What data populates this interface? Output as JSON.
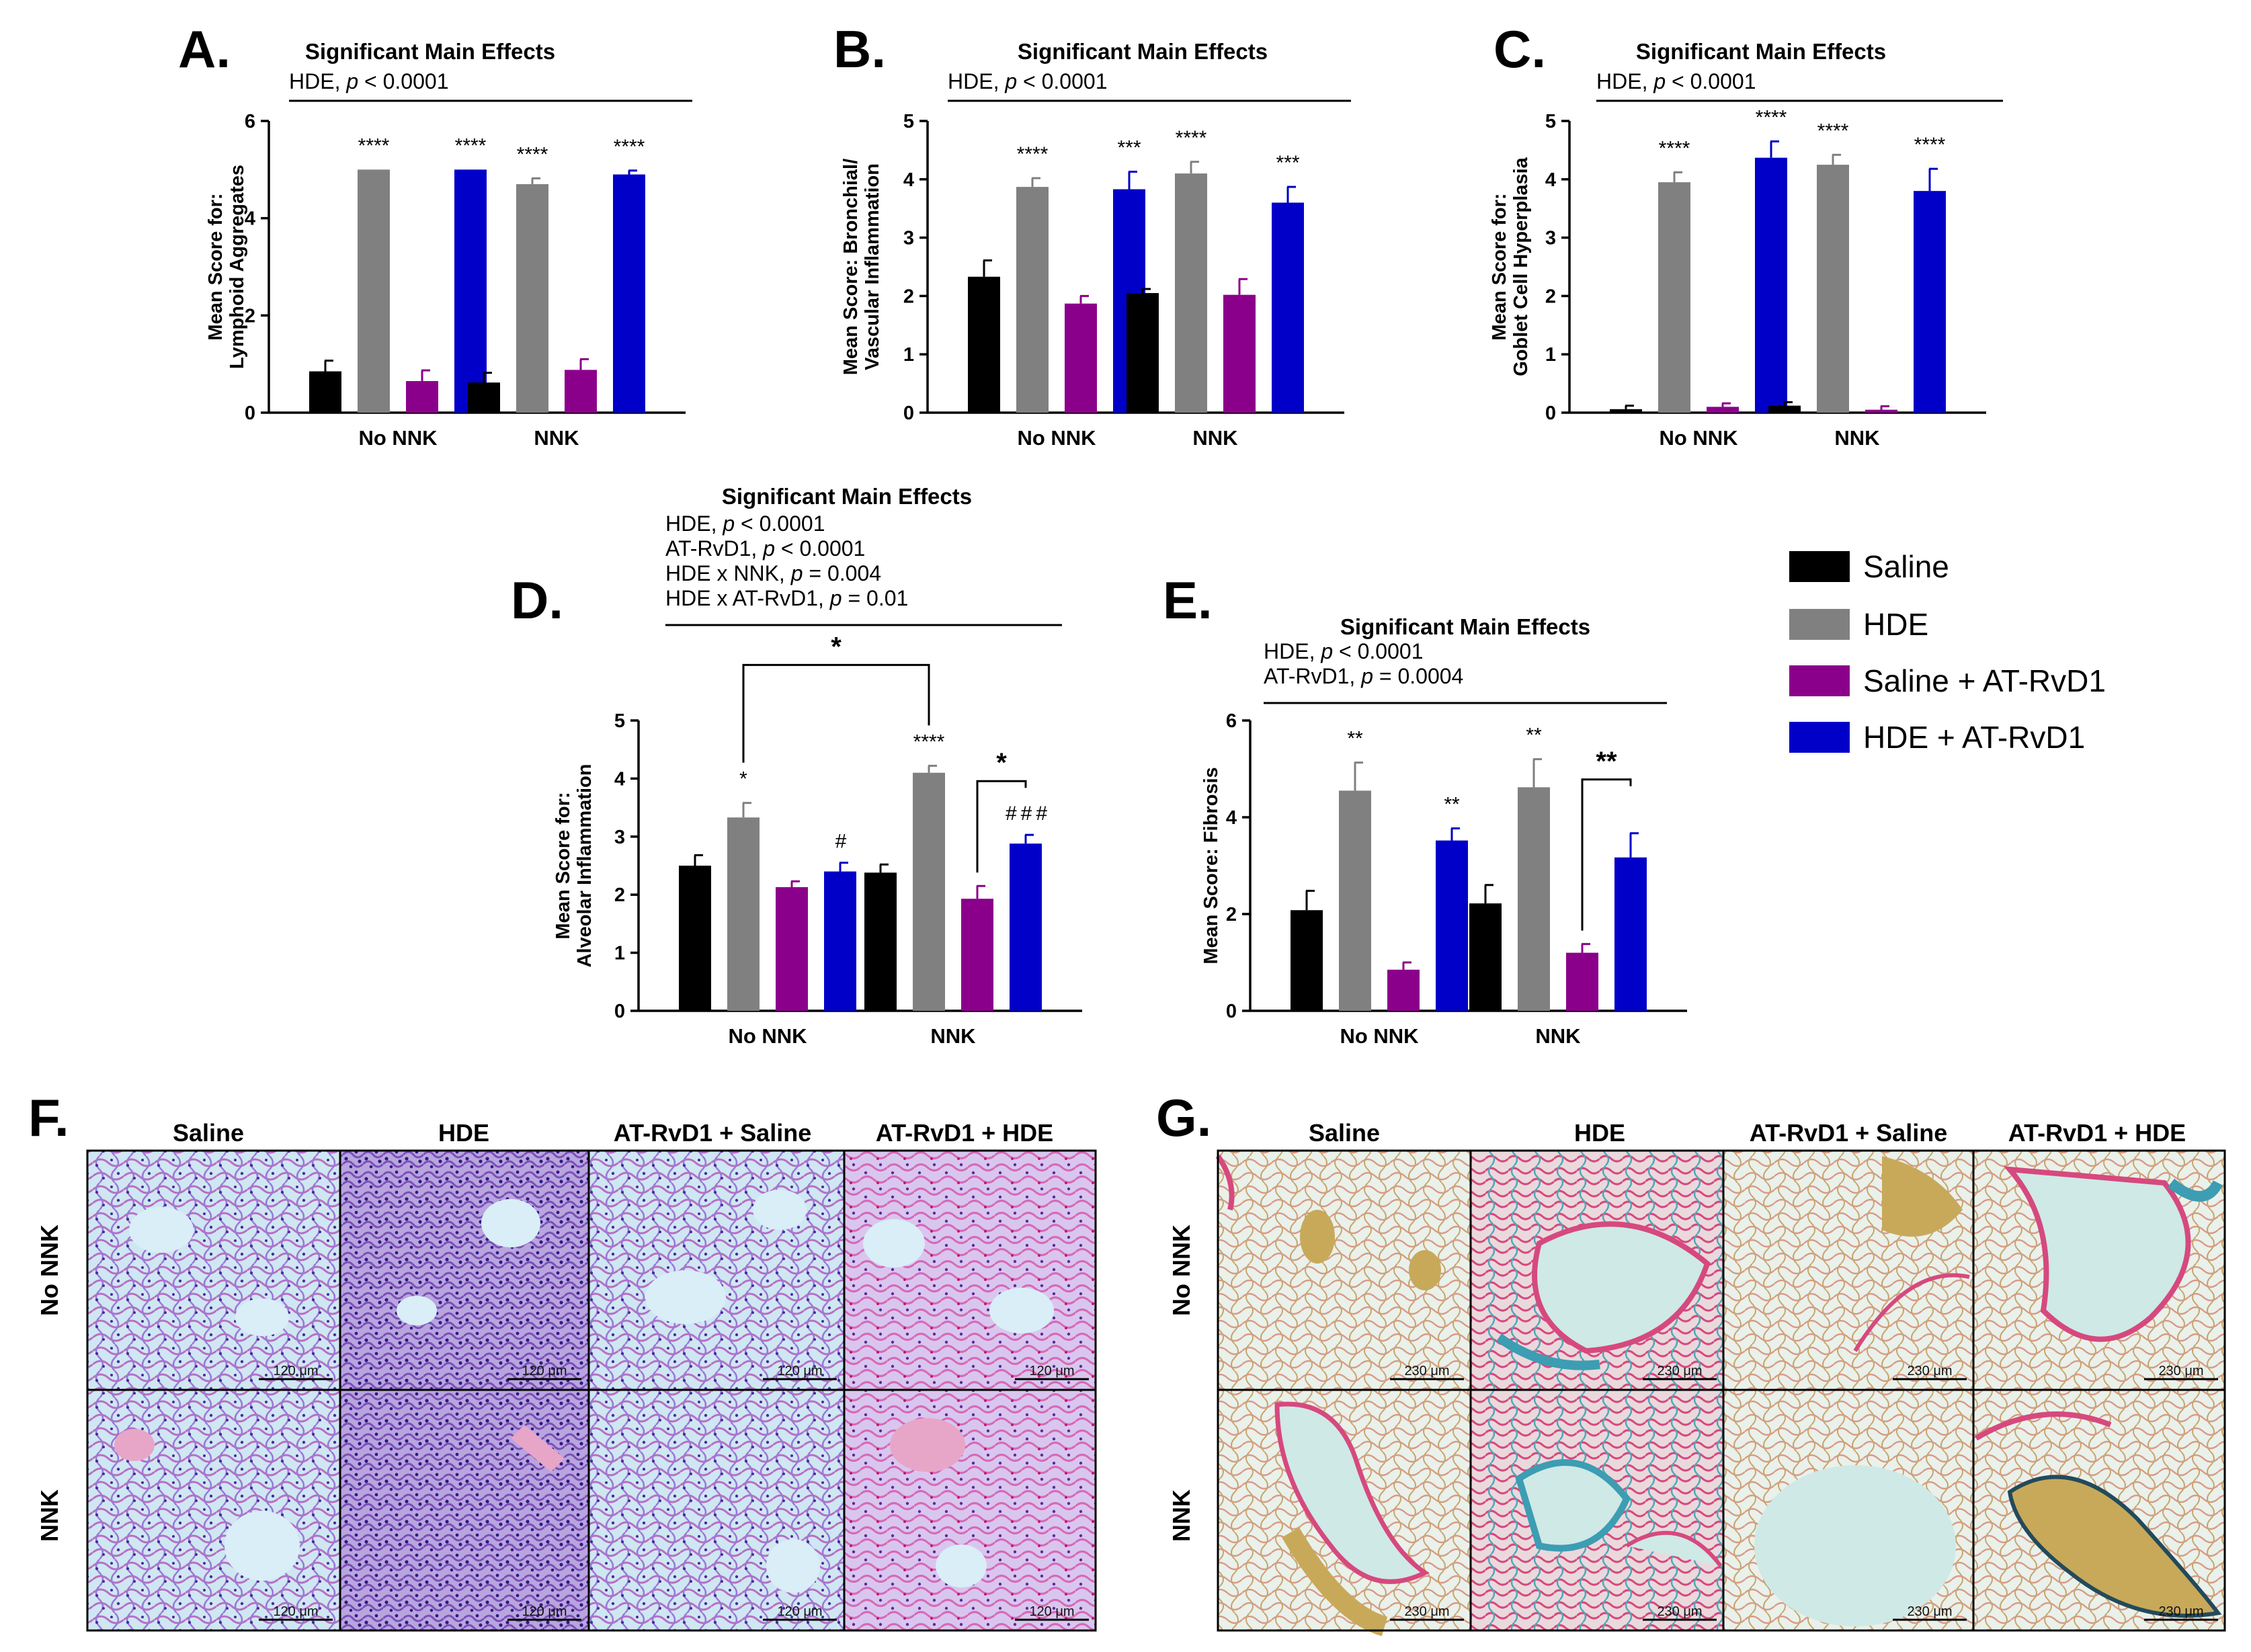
{
  "legend": {
    "items": [
      {
        "label": "Saline",
        "color": "#000000"
      },
      {
        "label": "HDE",
        "color": "#808080"
      },
      {
        "label": "Saline + AT-RvD1",
        "color": "#8B008B"
      },
      {
        "label": "HDE + AT-RvD1",
        "color": "#0000C8"
      }
    ]
  },
  "chart_data": [
    {
      "panel": "A.",
      "type": "bar",
      "title": "Significant Main Effects",
      "effects": [
        "HDE, p < 0.0001"
      ],
      "ylabel_lines": [
        "Mean Score for:",
        "Lymphoid Aggregates"
      ],
      "ylim": [
        0,
        6
      ],
      "yticks": [
        "0",
        "2",
        "4",
        "6"
      ],
      "ytick_values": [
        0,
        2,
        4,
        6
      ],
      "categories": [
        "No NNK",
        "NNK"
      ],
      "series": [
        {
          "name": "Saline",
          "values": [
            0.85,
            0.62
          ],
          "errors": [
            0.22,
            0.2
          ]
        },
        {
          "name": "HDE",
          "values": [
            5.0,
            4.7
          ],
          "errors": [
            0.0,
            0.12
          ]
        },
        {
          "name": "Saline + AT-RvD1",
          "values": [
            0.65,
            0.88
          ],
          "errors": [
            0.22,
            0.22
          ]
        },
        {
          "name": "HDE + AT-RvD1",
          "values": [
            5.0,
            4.9
          ],
          "errors": [
            0.0,
            0.08
          ]
        }
      ],
      "annotations": [
        [
          "",
          "****",
          "",
          "****"
        ],
        [
          "",
          "****",
          "",
          "****"
        ]
      ]
    },
    {
      "panel": "B.",
      "type": "bar",
      "title": "Significant Main Effects",
      "effects": [
        "HDE, p < 0.0001"
      ],
      "ylabel_lines": [
        "Mean Score: Bronchial/",
        "Vascular Inflammation"
      ],
      "ylim": [
        0,
        5
      ],
      "yticks": [
        "0",
        "1",
        "2",
        "3",
        "4",
        "5"
      ],
      "ytick_values": [
        0,
        1,
        2,
        3,
        4,
        5
      ],
      "categories": [
        "No NNK",
        "NNK"
      ],
      "series": [
        {
          "name": "Saline",
          "values": [
            2.33,
            2.05
          ],
          "errors": [
            0.28,
            0.07
          ]
        },
        {
          "name": "HDE",
          "values": [
            3.87,
            4.1
          ],
          "errors": [
            0.15,
            0.2
          ]
        },
        {
          "name": "Saline + AT-RvD1",
          "values": [
            1.87,
            2.02
          ],
          "errors": [
            0.13,
            0.27
          ]
        },
        {
          "name": "HDE + AT-RvD1",
          "values": [
            3.83,
            3.6
          ],
          "errors": [
            0.3,
            0.27
          ]
        }
      ],
      "annotations": [
        [
          "",
          "****",
          "",
          "***"
        ],
        [
          "",
          "****",
          "",
          "***"
        ]
      ]
    },
    {
      "panel": "C.",
      "type": "bar",
      "title": "Significant Main Effects",
      "effects": [
        "HDE, p < 0.0001"
      ],
      "ylabel_lines": [
        "Mean Score for:",
        "Goblet Cell Hyperplasia"
      ],
      "ylim": [
        0,
        5
      ],
      "yticks": [
        "0",
        "1",
        "2",
        "3",
        "4",
        "5"
      ],
      "ytick_values": [
        0,
        1,
        2,
        3,
        4,
        5
      ],
      "categories": [
        "No NNK",
        "NNK"
      ],
      "series": [
        {
          "name": "Saline",
          "values": [
            0.06,
            0.12
          ],
          "errors": [
            0.06,
            0.06
          ]
        },
        {
          "name": "HDE",
          "values": [
            3.95,
            4.25
          ],
          "errors": [
            0.17,
            0.17
          ]
        },
        {
          "name": "Saline + AT-RvD1",
          "values": [
            0.1,
            0.05
          ],
          "errors": [
            0.06,
            0.06
          ]
        },
        {
          "name": "HDE + AT-RvD1",
          "values": [
            4.37,
            3.8
          ],
          "errors": [
            0.28,
            0.38
          ]
        }
      ],
      "annotations": [
        [
          "",
          "****",
          "",
          "****"
        ],
        [
          "",
          "****",
          "",
          "****"
        ]
      ]
    },
    {
      "panel": "D.",
      "type": "bar",
      "title": "Significant Main Effects",
      "effects": [
        "HDE, p < 0.0001",
        "AT-RvD1, p < 0.0001",
        "HDE x NNK, p = 0.004",
        "HDE x AT-RvD1, p = 0.01"
      ],
      "ylabel_lines": [
        "Mean Score for:",
        "Alveolar Inflammation"
      ],
      "ylim": [
        0,
        5
      ],
      "yticks": [
        "0",
        "1",
        "2",
        "3",
        "4",
        "5"
      ],
      "ytick_values": [
        0,
        1,
        2,
        3,
        4,
        5
      ],
      "categories": [
        "No NNK",
        "NNK"
      ],
      "series": [
        {
          "name": "Saline",
          "values": [
            2.5,
            2.38
          ],
          "errors": [
            0.18,
            0.14
          ]
        },
        {
          "name": "HDE",
          "values": [
            3.33,
            4.1
          ],
          "errors": [
            0.25,
            0.12
          ]
        },
        {
          "name": "Saline + AT-RvD1",
          "values": [
            2.13,
            1.93
          ],
          "errors": [
            0.1,
            0.22
          ]
        },
        {
          "name": "HDE + AT-RvD1",
          "values": [
            2.4,
            2.88
          ],
          "errors": [
            0.15,
            0.15
          ]
        }
      ],
      "annotations": [
        [
          "",
          "*",
          "",
          "#"
        ],
        [
          "",
          "****",
          "",
          "###"
        ]
      ],
      "brackets": [
        {
          "label": "*",
          "from": [
            0,
            1
          ],
          "to": [
            1,
            1
          ]
        },
        {
          "label": "*",
          "from": [
            1,
            2
          ],
          "to": [
            1,
            3
          ]
        }
      ]
    },
    {
      "panel": "E.",
      "type": "bar",
      "title": "Significant Main Effects",
      "effects": [
        "HDE, p < 0.0001",
        "AT-RvD1, p = 0.0004"
      ],
      "ylabel_lines": [
        "Mean Score: Fibrosis"
      ],
      "ylim": [
        0,
        6
      ],
      "yticks": [
        "0",
        "2",
        "4",
        "6"
      ],
      "ytick_values": [
        0,
        2,
        4,
        6
      ],
      "categories": [
        "No NNK",
        "NNK"
      ],
      "series": [
        {
          "name": "Saline",
          "values": [
            2.08,
            2.22
          ],
          "errors": [
            0.4,
            0.38
          ]
        },
        {
          "name": "HDE",
          "values": [
            4.55,
            4.62
          ],
          "errors": [
            0.58,
            0.58
          ]
        },
        {
          "name": "Saline + AT-RvD1",
          "values": [
            0.85,
            1.2
          ],
          "errors": [
            0.15,
            0.18
          ]
        },
        {
          "name": "HDE + AT-RvD1",
          "values": [
            3.52,
            3.17
          ],
          "errors": [
            0.25,
            0.5
          ]
        }
      ],
      "annotations": [
        [
          "",
          "**",
          "",
          "**"
        ],
        [
          "",
          "**",
          "",
          ""
        ]
      ],
      "brackets": [
        {
          "label": "**",
          "from": [
            1,
            2
          ],
          "to": [
            1,
            3
          ]
        }
      ]
    }
  ],
  "histology": {
    "F": {
      "label": "F.",
      "columns": [
        "Saline",
        "HDE",
        "AT-RvD1 + Saline",
        "AT-RvD1 + HDE"
      ],
      "rows": [
        "No NNK",
        "NNK"
      ],
      "scale_bar": "120 μm"
    },
    "G": {
      "label": "G.",
      "columns": [
        "Saline",
        "HDE",
        "AT-RvD1 + Saline",
        "AT-RvD1 + HDE"
      ],
      "rows": [
        "No NNK",
        "NNK"
      ],
      "scale_bar": "230 μm"
    }
  }
}
